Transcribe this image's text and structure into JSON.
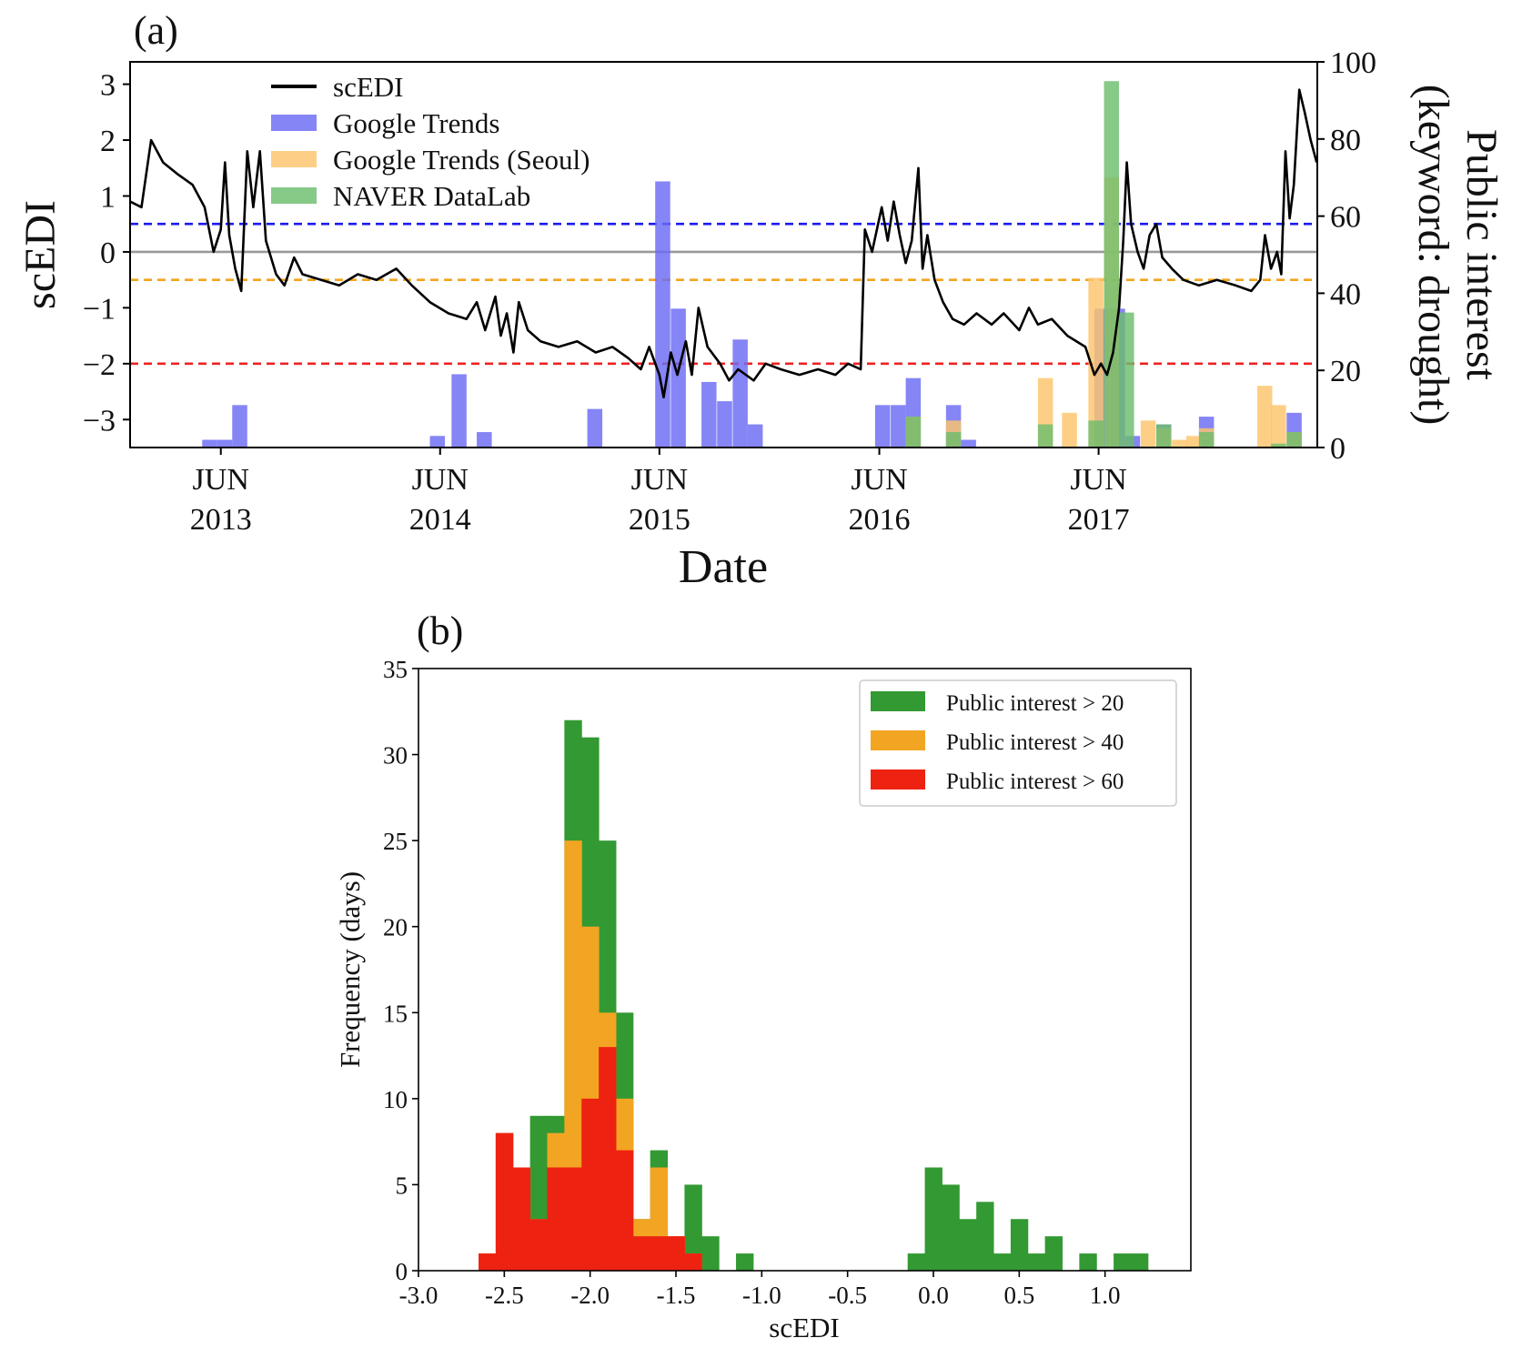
{
  "chart_data": [
    {
      "panel_label": "(a)",
      "type": "line",
      "xlabel": "Date",
      "ylabel": "scEDI",
      "ylabel_right": "Public interest\n(keyword: drought)",
      "x_tick_labels": [
        {
          "month": "JUN",
          "year": "2013",
          "date": "2013-06-01"
        },
        {
          "month": "JUN",
          "year": "2014",
          "date": "2014-06-01"
        },
        {
          "month": "JUN",
          "year": "2015",
          "date": "2015-06-01"
        },
        {
          "month": "JUN",
          "year": "2016",
          "date": "2016-06-01"
        },
        {
          "month": "JUN",
          "year": "2017",
          "date": "2017-06-01"
        }
      ],
      "xlim": [
        "2013-01-01",
        "2018-05-31"
      ],
      "ylim_left": [
        -3.5,
        3.4
      ],
      "ylim_right": [
        0,
        100
      ],
      "yticks_left": [
        3,
        2,
        1,
        0,
        -1,
        -2,
        -3
      ],
      "yticks_left_labels": [
        "3",
        "2",
        "1",
        "0",
        "−1",
        "−2",
        "−3"
      ],
      "yticks_right": [
        100,
        80,
        60,
        40,
        20,
        0
      ],
      "hlines": [
        {
          "y": 0.5,
          "style": "dashed",
          "color": "#1a1aee"
        },
        {
          "y": 0,
          "style": "solid",
          "color": "#999999"
        },
        {
          "y": -0.5,
          "style": "dashed",
          "color": "#f2a51e"
        },
        {
          "y": -2,
          "style": "dashed",
          "color": "#ee2222"
        }
      ],
      "legend_position": "upper-left",
      "series": [
        {
          "name": "scEDI",
          "kind": "line",
          "axis": "left",
          "color": "#000000",
          "points": [
            [
              "2013-01-01",
              0.9
            ],
            [
              "2013-01-20",
              0.8
            ],
            [
              "2013-02-05",
              2.0
            ],
            [
              "2013-02-25",
              1.6
            ],
            [
              "2013-03-20",
              1.4
            ],
            [
              "2013-04-15",
              1.2
            ],
            [
              "2013-05-05",
              0.8
            ],
            [
              "2013-05-20",
              0.0
            ],
            [
              "2013-06-01",
              0.4
            ],
            [
              "2013-06-08",
              1.6
            ],
            [
              "2013-06-15",
              0.3
            ],
            [
              "2013-06-25",
              -0.3
            ],
            [
              "2013-07-05",
              -0.7
            ],
            [
              "2013-07-15",
              1.8
            ],
            [
              "2013-07-25",
              0.8
            ],
            [
              "2013-08-05",
              1.8
            ],
            [
              "2013-08-15",
              0.2
            ],
            [
              "2013-09-01",
              -0.4
            ],
            [
              "2013-09-15",
              -0.6
            ],
            [
              "2013-10-01",
              -0.1
            ],
            [
              "2013-10-15",
              -0.4
            ],
            [
              "2013-11-15",
              -0.5
            ],
            [
              "2013-12-15",
              -0.6
            ],
            [
              "2014-01-15",
              -0.4
            ],
            [
              "2014-02-15",
              -0.5
            ],
            [
              "2014-03-20",
              -0.3
            ],
            [
              "2014-04-15",
              -0.6
            ],
            [
              "2014-05-15",
              -0.9
            ],
            [
              "2014-06-15",
              -1.1
            ],
            [
              "2014-07-15",
              -1.2
            ],
            [
              "2014-08-01",
              -0.9
            ],
            [
              "2014-08-15",
              -1.4
            ],
            [
              "2014-09-01",
              -0.8
            ],
            [
              "2014-09-10",
              -1.5
            ],
            [
              "2014-09-20",
              -1.1
            ],
            [
              "2014-10-01",
              -1.8
            ],
            [
              "2014-10-10",
              -0.9
            ],
            [
              "2014-10-25",
              -1.4
            ],
            [
              "2014-11-15",
              -1.6
            ],
            [
              "2014-12-15",
              -1.7
            ],
            [
              "2015-01-15",
              -1.6
            ],
            [
              "2015-02-15",
              -1.8
            ],
            [
              "2015-03-15",
              -1.7
            ],
            [
              "2015-04-10",
              -1.9
            ],
            [
              "2015-05-01",
              -2.1
            ],
            [
              "2015-05-15",
              -1.7
            ],
            [
              "2015-06-01",
              -2.2
            ],
            [
              "2015-06-08",
              -2.6
            ],
            [
              "2015-06-20",
              -1.8
            ],
            [
              "2015-07-01",
              -2.2
            ],
            [
              "2015-07-15",
              -1.6
            ],
            [
              "2015-07-25",
              -2.2
            ],
            [
              "2015-08-05",
              -1.0
            ],
            [
              "2015-08-20",
              -1.7
            ],
            [
              "2015-09-10",
              -2.0
            ],
            [
              "2015-09-25",
              -2.3
            ],
            [
              "2015-10-10",
              -2.1
            ],
            [
              "2015-11-05",
              -2.3
            ],
            [
              "2015-11-25",
              -2.0
            ],
            [
              "2015-12-20",
              -2.1
            ],
            [
              "2016-01-20",
              -2.2
            ],
            [
              "2016-02-20",
              -2.1
            ],
            [
              "2016-03-20",
              -2.2
            ],
            [
              "2016-04-10",
              -2.0
            ],
            [
              "2016-05-01",
              -2.1
            ],
            [
              "2016-05-08",
              0.4
            ],
            [
              "2016-05-20",
              0.0
            ],
            [
              "2016-06-05",
              0.8
            ],
            [
              "2016-06-15",
              0.2
            ],
            [
              "2016-06-25",
              0.9
            ],
            [
              "2016-07-05",
              0.3
            ],
            [
              "2016-07-15",
              -0.2
            ],
            [
              "2016-07-25",
              0.2
            ],
            [
              "2016-08-05",
              1.5
            ],
            [
              "2016-08-12",
              -0.3
            ],
            [
              "2016-08-20",
              0.3
            ],
            [
              "2016-09-01",
              -0.5
            ],
            [
              "2016-09-15",
              -0.9
            ],
            [
              "2016-10-01",
              -1.2
            ],
            [
              "2016-10-20",
              -1.3
            ],
            [
              "2016-11-10",
              -1.1
            ],
            [
              "2016-12-05",
              -1.3
            ],
            [
              "2016-12-25",
              -1.1
            ],
            [
              "2017-01-20",
              -1.4
            ],
            [
              "2017-02-05",
              -1.0
            ],
            [
              "2017-02-20",
              -1.3
            ],
            [
              "2017-03-15",
              -1.2
            ],
            [
              "2017-04-10",
              -1.5
            ],
            [
              "2017-05-10",
              -1.7
            ],
            [
              "2017-05-25",
              -2.2
            ],
            [
              "2017-06-05",
              -2.0
            ],
            [
              "2017-06-15",
              -2.2
            ],
            [
              "2017-06-25",
              -1.8
            ],
            [
              "2017-07-05",
              -1.0
            ],
            [
              "2017-07-12",
              0.2
            ],
            [
              "2017-07-18",
              1.6
            ],
            [
              "2017-07-25",
              0.5
            ],
            [
              "2017-08-05",
              0.0
            ],
            [
              "2017-08-15",
              -0.3
            ],
            [
              "2017-08-25",
              0.3
            ],
            [
              "2017-09-05",
              0.5
            ],
            [
              "2017-09-15",
              -0.1
            ],
            [
              "2017-10-01",
              -0.3
            ],
            [
              "2017-10-20",
              -0.5
            ],
            [
              "2017-11-15",
              -0.6
            ],
            [
              "2017-12-15",
              -0.5
            ],
            [
              "2018-01-15",
              -0.6
            ],
            [
              "2018-02-10",
              -0.7
            ],
            [
              "2018-02-25",
              -0.5
            ],
            [
              "2018-03-05",
              0.3
            ],
            [
              "2018-03-15",
              -0.3
            ],
            [
              "2018-03-25",
              0.0
            ],
            [
              "2018-04-01",
              -0.4
            ],
            [
              "2018-04-08",
              1.8
            ],
            [
              "2018-04-15",
              0.6
            ],
            [
              "2018-04-22",
              1.2
            ],
            [
              "2018-05-01",
              2.9
            ],
            [
              "2018-05-10",
              2.5
            ],
            [
              "2018-05-20",
              2.0
            ],
            [
              "2018-05-30",
              1.6
            ]
          ]
        },
        {
          "name": "Google Trends",
          "kind": "bar",
          "axis": "right",
          "color": "#6a6af4",
          "bin_days": 25,
          "bars": [
            [
              "2013-05-01",
              2
            ],
            [
              "2013-05-26",
              2
            ],
            [
              "2013-06-20",
              11
            ],
            [
              "2014-05-15",
              3
            ],
            [
              "2014-06-20",
              19
            ],
            [
              "2014-08-01",
              4
            ],
            [
              "2015-02-01",
              10
            ],
            [
              "2015-05-25",
              69
            ],
            [
              "2015-06-20",
              36
            ],
            [
              "2015-08-10",
              17
            ],
            [
              "2015-09-05",
              12
            ],
            [
              "2015-10-01",
              28
            ],
            [
              "2015-10-26",
              6
            ],
            [
              "2016-05-25",
              11
            ],
            [
              "2016-06-20",
              11
            ],
            [
              "2016-07-15",
              18
            ],
            [
              "2016-09-20",
              11
            ],
            [
              "2016-10-15",
              2
            ],
            [
              "2017-05-25",
              36
            ],
            [
              "2017-06-20",
              36
            ],
            [
              "2017-07-15",
              3
            ],
            [
              "2017-09-05",
              6
            ],
            [
              "2017-11-15",
              8
            ],
            [
              "2018-04-10",
              9
            ]
          ]
        },
        {
          "name": "Google Trends (Seoul)",
          "kind": "bar",
          "axis": "right",
          "color": "#fcc46b",
          "bin_days": 25,
          "bars": [
            [
              "2016-07-15",
              8
            ],
            [
              "2016-09-20",
              7
            ],
            [
              "2017-02-20",
              18
            ],
            [
              "2017-04-01",
              9
            ],
            [
              "2017-05-15",
              44
            ],
            [
              "2017-06-10",
              70
            ],
            [
              "2017-08-10",
              7
            ],
            [
              "2017-09-05",
              5
            ],
            [
              "2017-10-01",
              2
            ],
            [
              "2017-10-25",
              3
            ],
            [
              "2017-11-15",
              5
            ],
            [
              "2018-02-20",
              16
            ],
            [
              "2018-03-15",
              11
            ],
            [
              "2018-04-10",
              4
            ]
          ]
        },
        {
          "name": "NAVER DataLab",
          "kind": "bar",
          "axis": "right",
          "color": "#6cbd6c",
          "bin_days": 25,
          "bars": [
            [
              "2016-07-15",
              8
            ],
            [
              "2016-09-20",
              4
            ],
            [
              "2017-02-20",
              6
            ],
            [
              "2017-05-15",
              7
            ],
            [
              "2017-06-10",
              95
            ],
            [
              "2017-07-05",
              35
            ],
            [
              "2017-09-05",
              6
            ],
            [
              "2017-11-15",
              4
            ],
            [
              "2018-03-15",
              1
            ],
            [
              "2018-04-10",
              4
            ]
          ]
        }
      ]
    },
    {
      "panel_label": "(b)",
      "type": "bar",
      "xlabel": "scEDI",
      "ylabel": "Frequency (days)",
      "xlim": [
        -3.0,
        1.5
      ],
      "ylim": [
        0,
        35
      ],
      "xticks": [
        -3.0,
        -2.5,
        -2.0,
        -1.5,
        -1.0,
        -0.5,
        0.0,
        0.5,
        1.0
      ],
      "x_tick_labels": [
        "-3.0",
        "-2.5",
        "-2.0",
        "-1.5",
        "-1.0",
        "-0.5",
        "0.0",
        "0.5",
        "1.0"
      ],
      "yticks": [
        0,
        5,
        10,
        15,
        20,
        25,
        30,
        35
      ],
      "bin_width": 0.1,
      "bin_starts": [
        -2.65,
        -2.55,
        -2.45,
        -2.35,
        -2.25,
        -2.15,
        -2.05,
        -1.95,
        -1.85,
        -1.75,
        -1.65,
        -1.55,
        -1.45,
        -1.35,
        -1.25,
        -1.15,
        -1.05,
        -0.95,
        -0.85,
        -0.75,
        -0.65,
        -0.55,
        -0.45,
        -0.35,
        -0.25,
        -0.15,
        -0.05,
        0.05,
        0.15,
        0.25,
        0.35,
        0.45,
        0.55,
        0.65,
        0.75,
        0.85,
        0.95,
        1.05,
        1.15
      ],
      "legend_position": "upper-right",
      "series": [
        {
          "name": "Public interest > 20",
          "color": "#339933",
          "values": [
            1,
            8,
            6,
            9,
            9,
            32,
            31,
            25,
            15,
            3,
            7,
            2,
            5,
            2,
            0,
            1,
            0,
            0,
            0,
            0,
            0,
            0,
            0,
            0,
            0,
            1,
            6,
            5,
            3,
            4,
            1,
            3,
            1,
            2,
            0,
            1,
            0,
            1,
            1
          ]
        },
        {
          "name": "Public interest > 40",
          "color": "#f2a522",
          "values": [
            1,
            8,
            6,
            3,
            8,
            25,
            20,
            15,
            10,
            3,
            6,
            2,
            1,
            0,
            0,
            0,
            0,
            0,
            0,
            0,
            0,
            0,
            0,
            0,
            0,
            0,
            0,
            0,
            0,
            0,
            0,
            0,
            0,
            0,
            0,
            0,
            0,
            0,
            0
          ]
        },
        {
          "name": "Public interest > 60",
          "color": "#ee2211",
          "values": [
            1,
            8,
            6,
            3,
            6,
            6,
            10,
            13,
            7,
            2,
            2,
            2,
            1,
            0,
            0,
            0,
            0,
            0,
            0,
            0,
            0,
            0,
            0,
            0,
            0,
            0,
            0,
            0,
            0,
            0,
            0,
            0,
            0,
            0,
            0,
            0,
            0,
            0,
            0
          ]
        }
      ]
    }
  ]
}
